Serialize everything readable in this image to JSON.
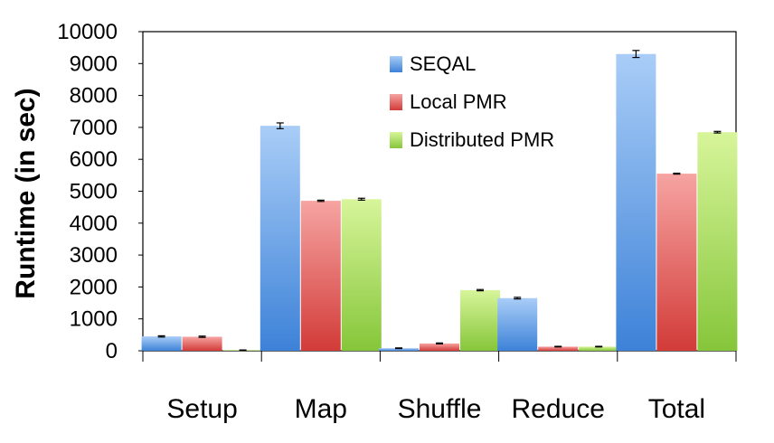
{
  "chart_data": {
    "type": "bar",
    "title": "",
    "xlabel": "",
    "ylabel": "Runtime (in sec)",
    "ylim": [
      0,
      10000
    ],
    "yticks": [
      0,
      1000,
      2000,
      3000,
      4000,
      5000,
      6000,
      7000,
      8000,
      9000,
      10000
    ],
    "categories": [
      "Setup",
      "Map",
      "Shuffle",
      "Reduce",
      "Total"
    ],
    "series": [
      {
        "name": "SEQAL",
        "values": [
          450,
          7050,
          80,
          1650,
          9300
        ],
        "errors": [
          20,
          90,
          10,
          25,
          110
        ],
        "color_light": "#a9cdf7",
        "color_dark": "#3d82d8"
      },
      {
        "name": "Local PMR",
        "values": [
          440,
          4700,
          230,
          130,
          5550
        ],
        "errors": [
          20,
          20,
          15,
          10,
          15
        ],
        "color_light": "#f6a4a2",
        "color_dark": "#d23b38"
      },
      {
        "name": "Distributed PMR",
        "values": [
          20,
          4750,
          1900,
          130,
          6850
        ],
        "errors": [
          5,
          30,
          20,
          10,
          25
        ],
        "color_light": "#d7f59a",
        "color_dark": "#86c63a"
      }
    ],
    "grid": false,
    "legend_position": "top-center",
    "error_bars": true
  }
}
